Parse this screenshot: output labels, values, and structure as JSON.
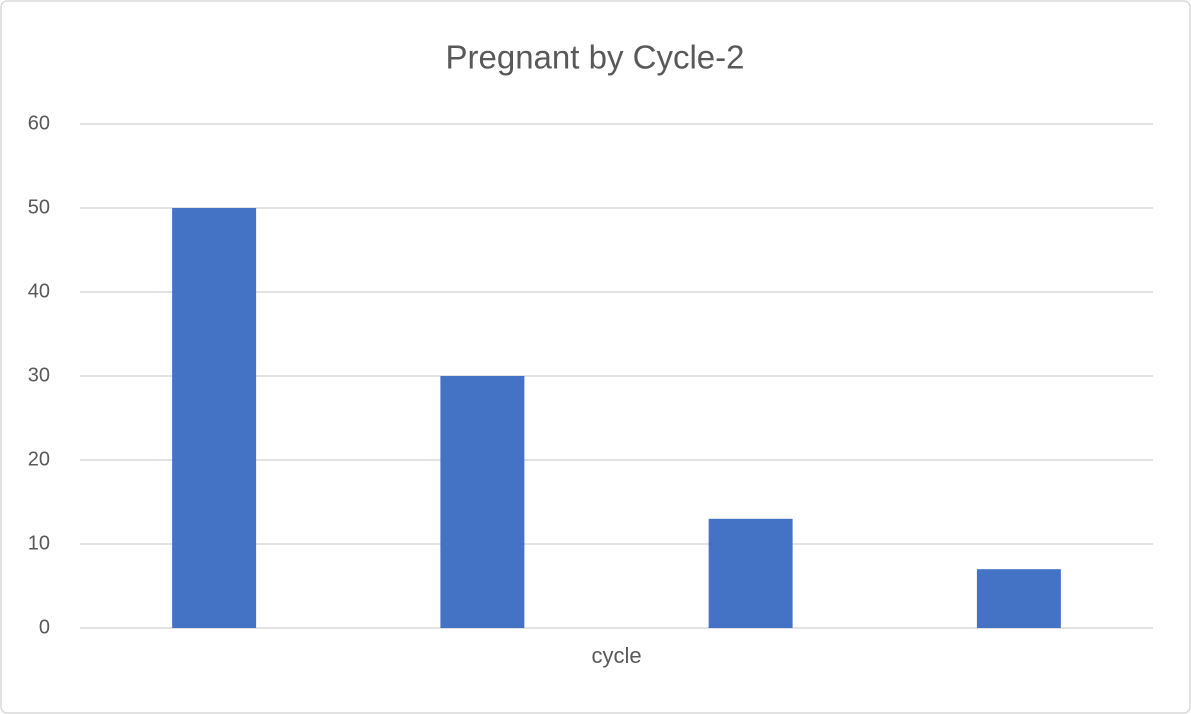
{
  "chart_data": {
    "type": "bar",
    "title": "Pregnant by Cycle-2",
    "categories": [
      "cycle"
    ],
    "series": [
      {
        "color": "#4472c4",
        "values": [
          50
        ]
      },
      {
        "color": "#4472c4",
        "values": [
          30
        ]
      },
      {
        "color": "#4472c4",
        "values": [
          13
        ]
      },
      {
        "color": "#4472c4",
        "values": [
          7
        ]
      }
    ],
    "ylim": [
      0,
      60
    ],
    "yticks": [
      0,
      10,
      20,
      30,
      40,
      50,
      60
    ],
    "grid": true
  }
}
